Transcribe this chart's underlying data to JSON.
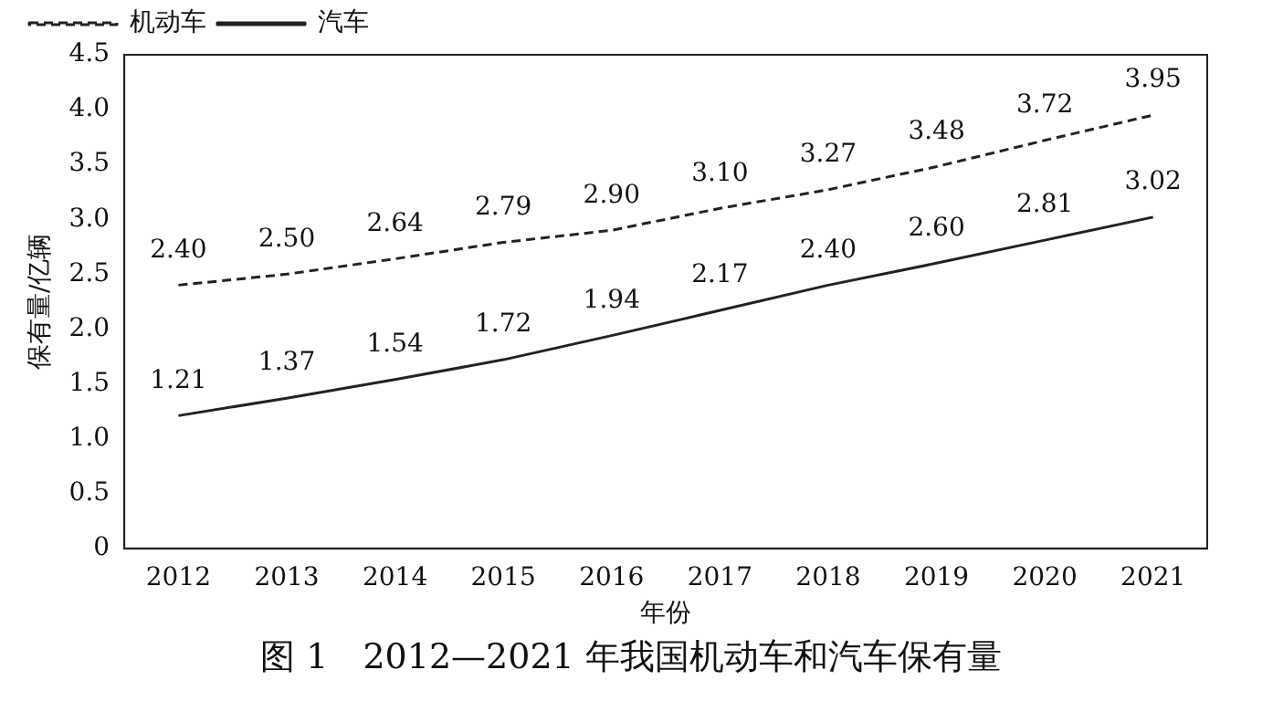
{
  "chart_data": {
    "type": "line",
    "title": "图 1　2012—2021 年我国机动车和汽车保有量",
    "xlabel": "年份",
    "ylabel": "保有量/亿辆",
    "categories": [
      "2012",
      "2013",
      "2014",
      "2015",
      "2016",
      "2017",
      "2018",
      "2019",
      "2020",
      "2021"
    ],
    "series": [
      {
        "name": "机动车",
        "color": "#222222",
        "line_style": "dashed",
        "values": [
          2.4,
          2.5,
          2.64,
          2.79,
          2.9,
          3.1,
          3.27,
          3.48,
          3.72,
          3.95
        ],
        "value_labels": [
          "2.40",
          "2.50",
          "2.64",
          "2.79",
          "2.90",
          "3.10",
          "3.27",
          "3.48",
          "3.72",
          "3.95"
        ]
      },
      {
        "name": "汽车",
        "color": "#222222",
        "line_style": "solid",
        "values": [
          1.21,
          1.37,
          1.54,
          1.72,
          1.94,
          2.17,
          2.4,
          2.6,
          2.81,
          3.02
        ],
        "value_labels": [
          "1.21",
          "1.37",
          "1.54",
          "1.72",
          "1.94",
          "2.17",
          "2.40",
          "2.60",
          "2.81",
          "3.02"
        ]
      }
    ],
    "ylim": [
      0,
      4.5
    ],
    "yticks": [
      0,
      {
        "value": 0.5,
        "label": "0.5"
      },
      {
        "value": 1,
        "label": "1.0"
      },
      {
        "value": 1.5,
        "label": "1.5"
      },
      {
        "value": 2,
        "label": "2.0"
      },
      {
        "value": 2.5,
        "label": "2.5"
      },
      {
        "value": 3,
        "label": "3.0"
      },
      {
        "value": 3.5,
        "label": "3.5"
      },
      {
        "value": 4,
        "label": "4.0"
      },
      {
        "value": 4.5,
        "label": "4.5"
      }
    ],
    "grid": false,
    "legend": "top left",
    "marker": "none"
  }
}
